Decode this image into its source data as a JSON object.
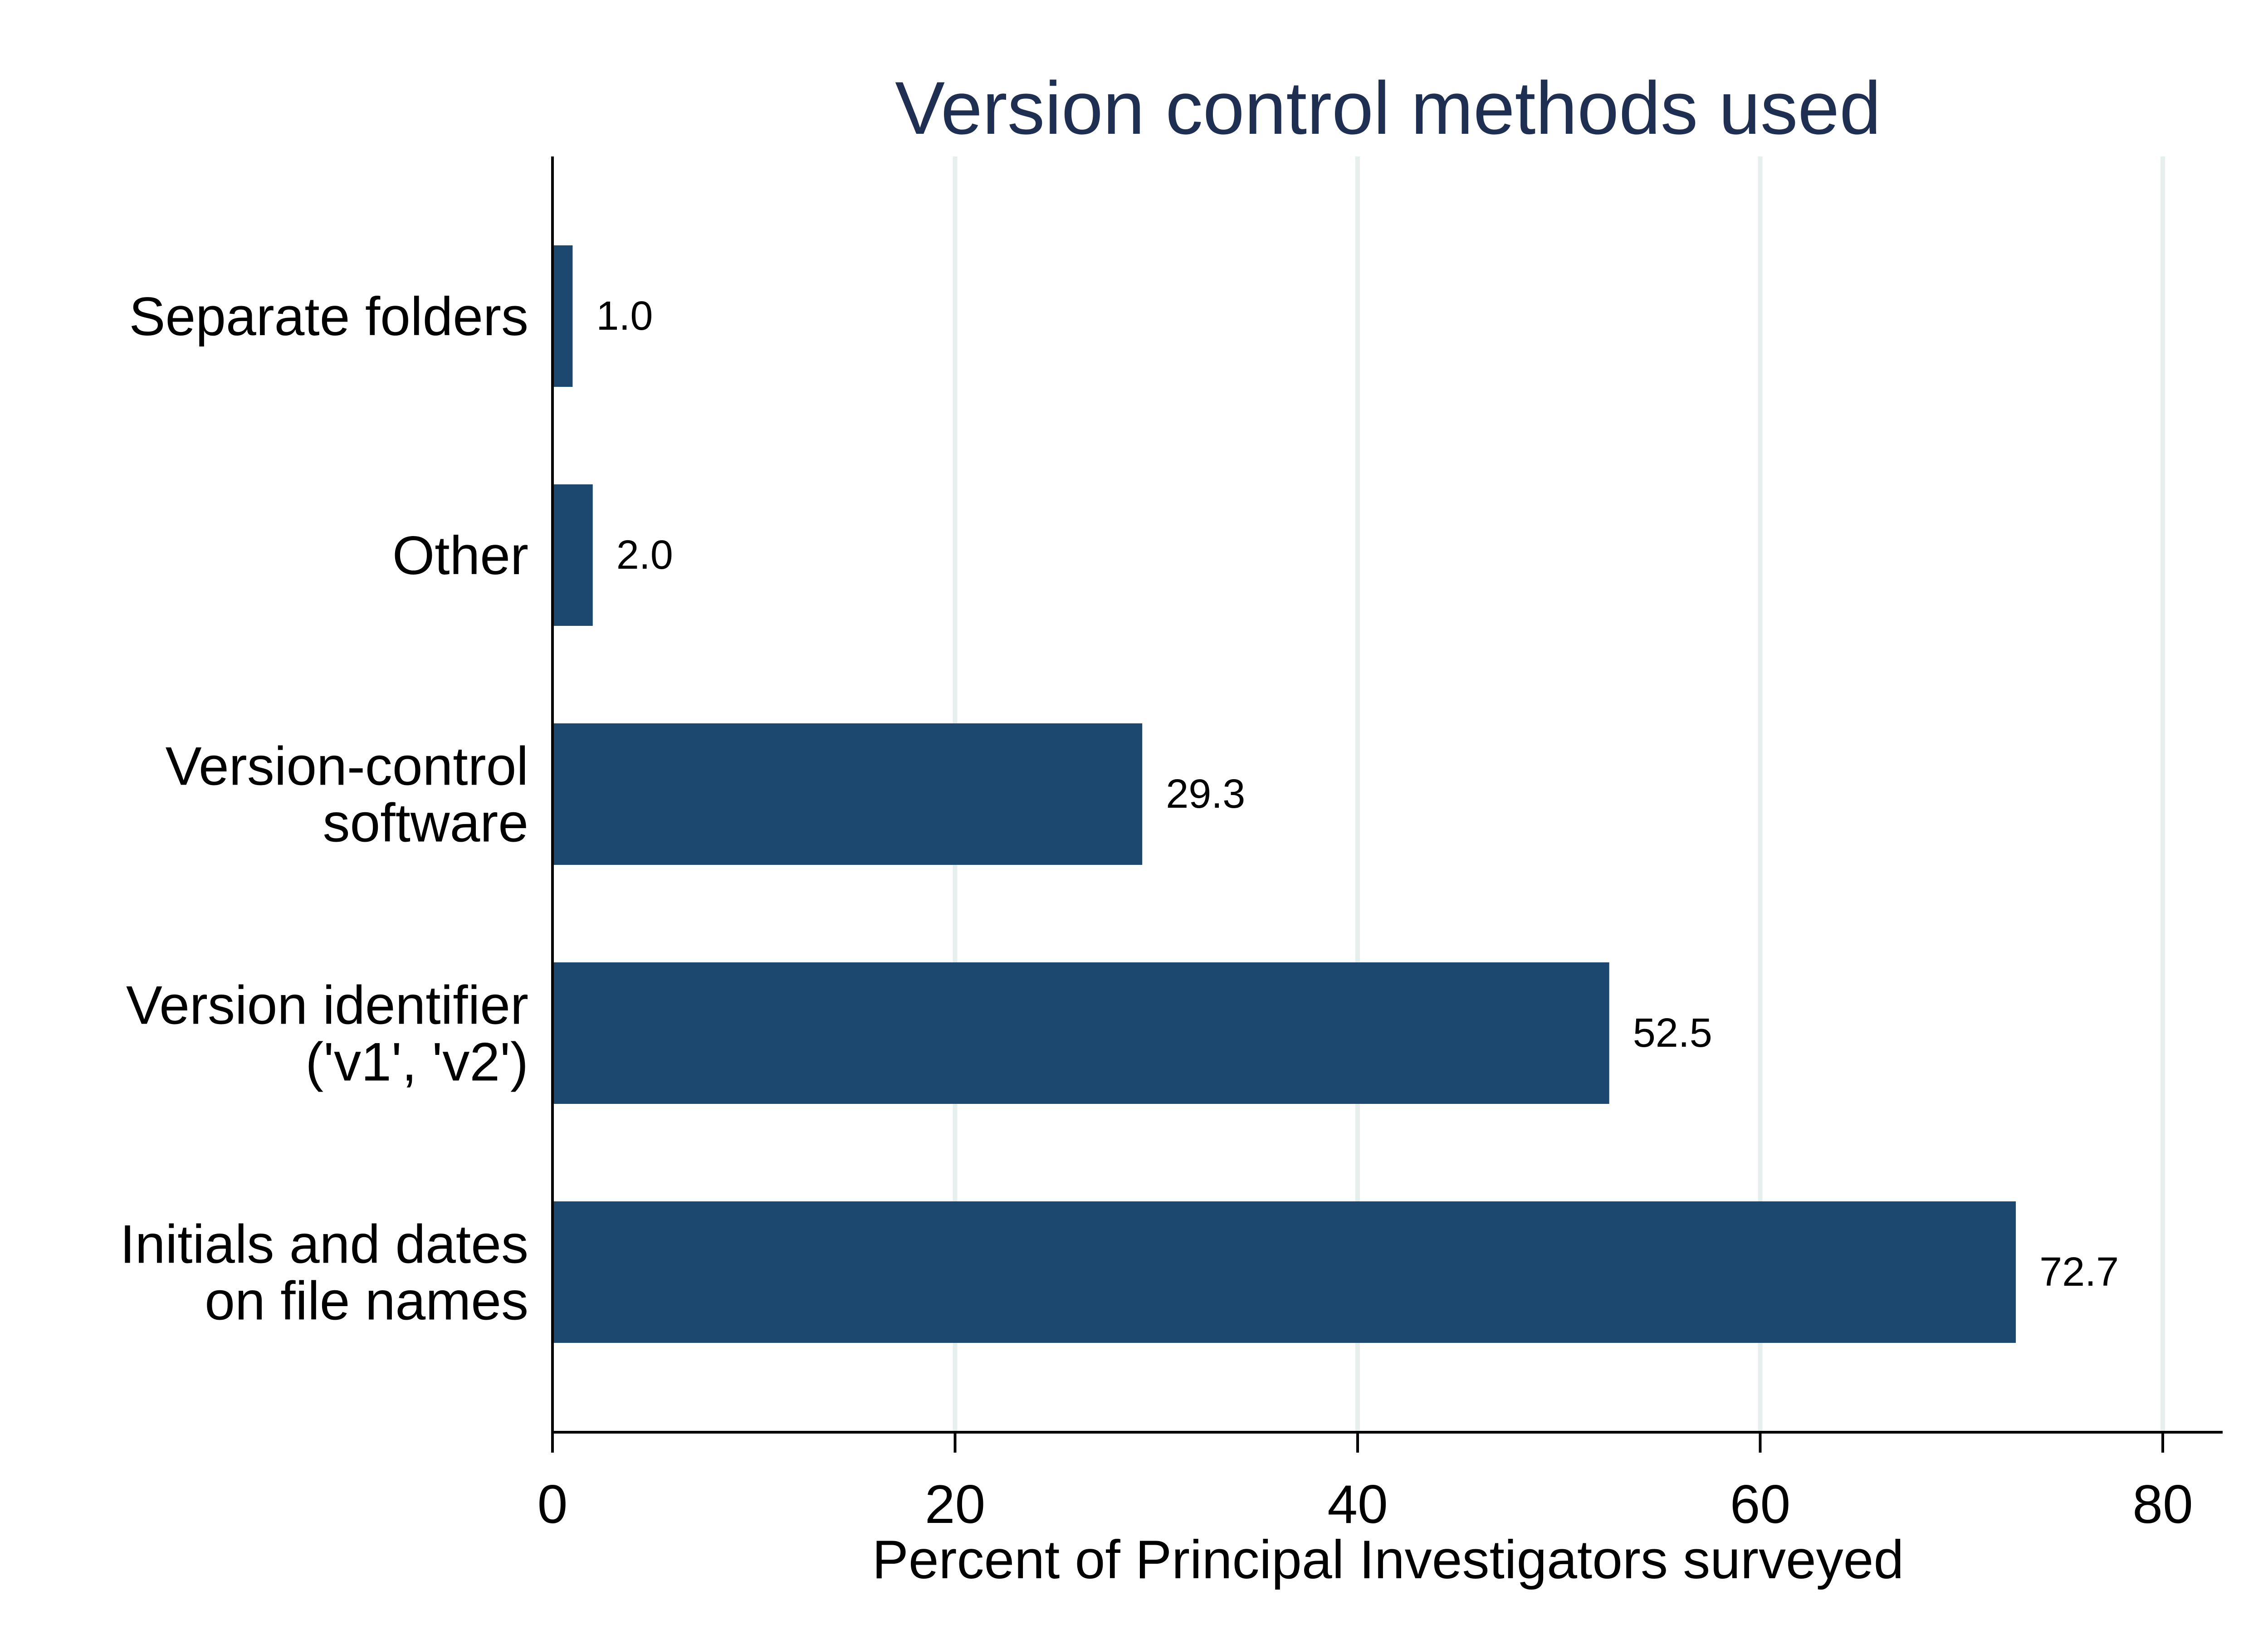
{
  "chart_data": {
    "type": "bar",
    "orientation": "horizontal",
    "title": "Version control methods used",
    "xlabel": "Percent of Principal Investigators surveyed",
    "ylabel": "",
    "xlim": [
      0,
      83
    ],
    "xticks": [
      0,
      20,
      40,
      60,
      80
    ],
    "grid": "vertical",
    "legend": "none",
    "categories": [
      [
        "Separate folders"
      ],
      [
        "Other"
      ],
      [
        "Version-control",
        "software"
      ],
      [
        "Version identifier",
        "('v1', 'v2')"
      ],
      [
        "Initials and dates",
        "on file names"
      ]
    ],
    "values": [
      1.0,
      2.0,
      29.3,
      52.5,
      72.7
    ],
    "value_labels": [
      "1.0",
      "2.0",
      "29.3",
      "52.5",
      "72.7"
    ],
    "colors": {
      "bar": "#1c476e",
      "title": "#1e2f52",
      "grid": "#e6efee",
      "axis": "#000000"
    }
  }
}
